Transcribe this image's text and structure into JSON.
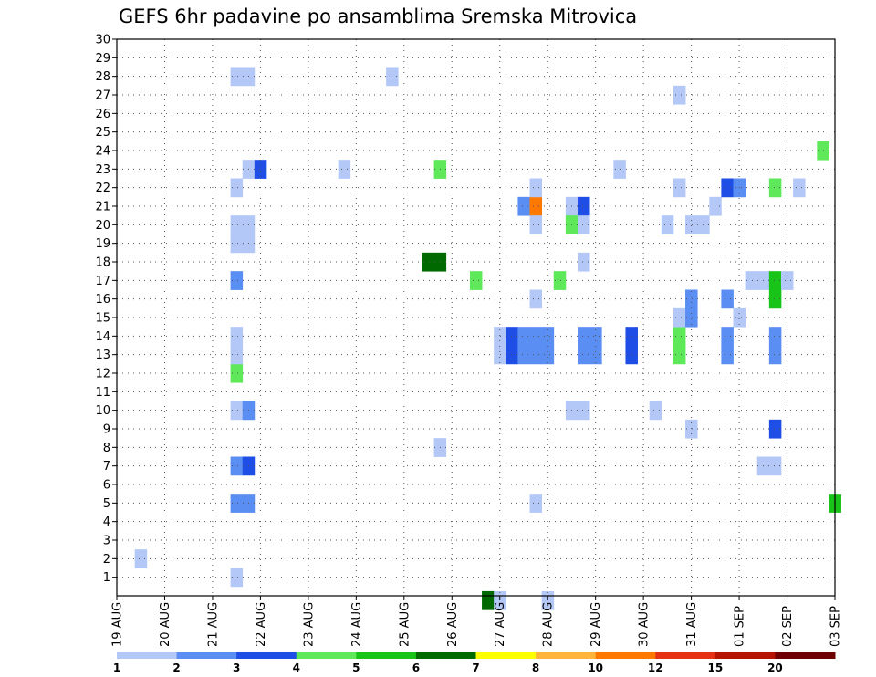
{
  "chart_data": {
    "type": "heatmap",
    "title": "GEFS 6hr padavine po ansamblima Sremska Mitrovica",
    "xlabel": "",
    "ylabel": "",
    "x_tick_labels": [
      "19 AUG",
      "20 AUG",
      "21 AUG",
      "22 AUG",
      "23 AUG",
      "24 AUG",
      "25 AUG",
      "26 AUG",
      "27 AUG",
      "28 AUG",
      "29 AUG",
      "30 AUG",
      "31 AUG",
      "01 SEP",
      "02 SEP",
      "03 SEP"
    ],
    "x_range_days": [
      0,
      15
    ],
    "y_tick_labels": [
      "1",
      "2",
      "3",
      "4",
      "5",
      "6",
      "7",
      "8",
      "9",
      "10",
      "11",
      "12",
      "13",
      "14",
      "15",
      "16",
      "17",
      "18",
      "19",
      "20",
      "21",
      "22",
      "23",
      "24",
      "25",
      "26",
      "27",
      "28",
      "29",
      "30"
    ],
    "y_range": [
      0,
      30
    ],
    "grid": true,
    "colorbar": {
      "tick_labels": [
        "1",
        "2",
        "3",
        "4",
        "5",
        "6",
        "7",
        "8",
        "10",
        "12",
        "15",
        "20"
      ],
      "colors": [
        "#b4c8f8",
        "#5a8ef2",
        "#1e4ee6",
        "#5ee85a",
        "#18c418",
        "#006a00",
        "#ffff00",
        "#ffb43c",
        "#ff7800",
        "#e63214",
        "#b41400",
        "#6e0000"
      ]
    },
    "cells": [
      {
        "day": 2.5,
        "member": 1,
        "c": 0
      },
      {
        "day": 0.5,
        "member": 2,
        "c": 0
      },
      {
        "day": 2.5,
        "member": 5,
        "c": 1
      },
      {
        "day": 2.75,
        "member": 5,
        "c": 1
      },
      {
        "day": 2.5,
        "member": 7,
        "c": 1
      },
      {
        "day": 2.75,
        "member": 7,
        "c": 2
      },
      {
        "day": 2.5,
        "member": 10,
        "c": 0
      },
      {
        "day": 2.75,
        "member": 10,
        "c": 1
      },
      {
        "day": 2.5,
        "member": 12,
        "c": 3
      },
      {
        "day": 2.5,
        "member": 14,
        "c": 0
      },
      {
        "day": 2.5,
        "member": 13,
        "c": 0
      },
      {
        "day": 2.5,
        "member": 17,
        "c": 1
      },
      {
        "day": 2.5,
        "member": 19,
        "c": 0
      },
      {
        "day": 2.75,
        "member": 19,
        "c": 0
      },
      {
        "day": 2.5,
        "member": 20,
        "c": 0
      },
      {
        "day": 2.75,
        "member": 20,
        "c": 0
      },
      {
        "day": 2.5,
        "member": 22,
        "c": 0
      },
      {
        "day": 2.75,
        "member": 23,
        "c": 0
      },
      {
        "day": 3.0,
        "member": 23,
        "c": 2
      },
      {
        "day": 2.5,
        "member": 28,
        "c": 0
      },
      {
        "day": 2.75,
        "member": 28,
        "c": 0
      },
      {
        "day": 4.75,
        "member": 23,
        "c": 0
      },
      {
        "day": 5.75,
        "member": 28,
        "c": 0
      },
      {
        "day": 6.75,
        "member": 8,
        "c": 0
      },
      {
        "day": 6.75,
        "member": 23,
        "c": 3
      },
      {
        "day": 6.5,
        "member": 18,
        "c": 5
      },
      {
        "day": 6.75,
        "member": 18,
        "c": 5
      },
      {
        "day": 7.5,
        "member": 17,
        "c": 3
      },
      {
        "day": 7.75,
        "member": -0.25,
        "c": 5
      },
      {
        "day": 8.0,
        "member": 13,
        "c": 0
      },
      {
        "day": 8.0,
        "member": 14,
        "c": 0
      },
      {
        "day": 8.0,
        "member": -0.25,
        "c": 0
      },
      {
        "day": 8.25,
        "member": 13,
        "c": 2
      },
      {
        "day": 8.25,
        "member": 14,
        "c": 2
      },
      {
        "day": 8.5,
        "member": 13,
        "c": 1
      },
      {
        "day": 8.5,
        "member": 14,
        "c": 1
      },
      {
        "day": 8.75,
        "member": 13,
        "c": 1
      },
      {
        "day": 8.75,
        "member": 14,
        "c": 1
      },
      {
        "day": 9.0,
        "member": 13,
        "c": 1
      },
      {
        "day": 9.0,
        "member": 14,
        "c": 1
      },
      {
        "day": 8.5,
        "member": 21,
        "c": 1
      },
      {
        "day": 8.75,
        "member": 21,
        "c": 8
      },
      {
        "day": 8.75,
        "member": 22,
        "c": 0
      },
      {
        "day": 8.75,
        "member": 20,
        "c": 0
      },
      {
        "day": 8.75,
        "member": 16,
        "c": 0
      },
      {
        "day": 8.75,
        "member": 5,
        "c": 0
      },
      {
        "day": 9.0,
        "member": -0.25,
        "c": 0
      },
      {
        "day": 9.25,
        "member": 17,
        "c": 3
      },
      {
        "day": 9.5,
        "member": 21,
        "c": 0
      },
      {
        "day": 9.5,
        "member": 20,
        "c": 3
      },
      {
        "day": 9.75,
        "member": 21,
        "c": 2
      },
      {
        "day": 9.75,
        "member": 20,
        "c": 0
      },
      {
        "day": 9.75,
        "member": 18,
        "c": 0
      },
      {
        "day": 9.75,
        "member": 13,
        "c": 1
      },
      {
        "day": 9.75,
        "member": 14,
        "c": 1
      },
      {
        "day": 10.0,
        "member": 13,
        "c": 1
      },
      {
        "day": 10.0,
        "member": 14,
        "c": 1
      },
      {
        "day": 9.5,
        "member": 10,
        "c": 0
      },
      {
        "day": 9.75,
        "member": 10,
        "c": 0
      },
      {
        "day": 10.5,
        "member": 23,
        "c": 0
      },
      {
        "day": 10.75,
        "member": 13,
        "c": 2
      },
      {
        "day": 10.75,
        "member": 14,
        "c": 2
      },
      {
        "day": 11.25,
        "member": 10,
        "c": 0
      },
      {
        "day": 11.5,
        "member": 20,
        "c": 0
      },
      {
        "day": 11.75,
        "member": 27,
        "c": 0
      },
      {
        "day": 11.75,
        "member": 22,
        "c": 0
      },
      {
        "day": 11.75,
        "member": 13,
        "c": 3
      },
      {
        "day": 11.75,
        "member": 14,
        "c": 3
      },
      {
        "day": 11.75,
        "member": 15,
        "c": 0
      },
      {
        "day": 12.0,
        "member": 15,
        "c": 1
      },
      {
        "day": 12.0,
        "member": 16,
        "c": 1
      },
      {
        "day": 12.0,
        "member": 9,
        "c": 0
      },
      {
        "day": 12.0,
        "member": 20,
        "c": 0
      },
      {
        "day": 12.25,
        "member": 20,
        "c": 0
      },
      {
        "day": 12.5,
        "member": 21,
        "c": 0
      },
      {
        "day": 12.75,
        "member": 22,
        "c": 2
      },
      {
        "day": 13.0,
        "member": 22,
        "c": 1
      },
      {
        "day": 12.75,
        "member": 16,
        "c": 1
      },
      {
        "day": 12.75,
        "member": 13,
        "c": 1
      },
      {
        "day": 12.75,
        "member": 14,
        "c": 1
      },
      {
        "day": 13.0,
        "member": 15,
        "c": 0
      },
      {
        "day": 13.25,
        "member": 17,
        "c": 0
      },
      {
        "day": 13.5,
        "member": 17,
        "c": 0
      },
      {
        "day": 13.75,
        "member": 17,
        "c": 4
      },
      {
        "day": 13.75,
        "member": 16,
        "c": 4
      },
      {
        "day": 14.0,
        "member": 17,
        "c": 0
      },
      {
        "day": 13.75,
        "member": 22,
        "c": 3
      },
      {
        "day": 14.25,
        "member": 22,
        "c": 0
      },
      {
        "day": 13.75,
        "member": 9,
        "c": 2
      },
      {
        "day": 13.75,
        "member": 13,
        "c": 1
      },
      {
        "day": 13.75,
        "member": 14,
        "c": 1
      },
      {
        "day": 13.5,
        "member": 7,
        "c": 0
      },
      {
        "day": 13.75,
        "member": 7,
        "c": 0
      },
      {
        "day": 14.75,
        "member": 24,
        "c": 3
      },
      {
        "day": 15.0,
        "member": 5,
        "c": 4
      }
    ]
  }
}
